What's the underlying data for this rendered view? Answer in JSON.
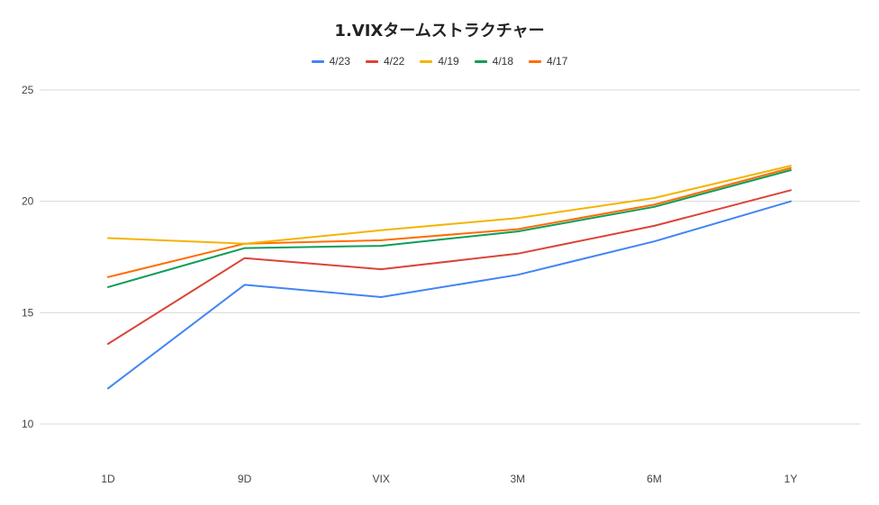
{
  "chart_data": {
    "type": "line",
    "title": "1.VIXタームストラクチャー",
    "xlabel": "",
    "ylabel": "",
    "categories": [
      "1D",
      "9D",
      "VIX",
      "3M",
      "6M",
      "1Y"
    ],
    "ylim": [
      10,
      25
    ],
    "yticks": [
      10,
      15,
      20,
      25
    ],
    "grid": true,
    "legend_position": "top",
    "series": [
      {
        "name": "4/23",
        "color": "#4285f4",
        "values": [
          11.6,
          16.25,
          15.7,
          16.7,
          18.2,
          20.0
        ]
      },
      {
        "name": "4/22",
        "color": "#db4437",
        "values": [
          13.6,
          17.45,
          16.95,
          17.65,
          18.9,
          20.5
        ]
      },
      {
        "name": "4/19",
        "color": "#f4b400",
        "values": [
          18.35,
          18.1,
          18.7,
          19.25,
          20.15,
          21.6
        ]
      },
      {
        "name": "4/18",
        "color": "#0f9d58",
        "values": [
          16.15,
          17.9,
          18.0,
          18.65,
          19.75,
          21.4
        ]
      },
      {
        "name": "4/17",
        "color": "#ff6d00",
        "values": [
          16.6,
          18.1,
          18.25,
          18.75,
          19.85,
          21.5
        ]
      }
    ]
  }
}
